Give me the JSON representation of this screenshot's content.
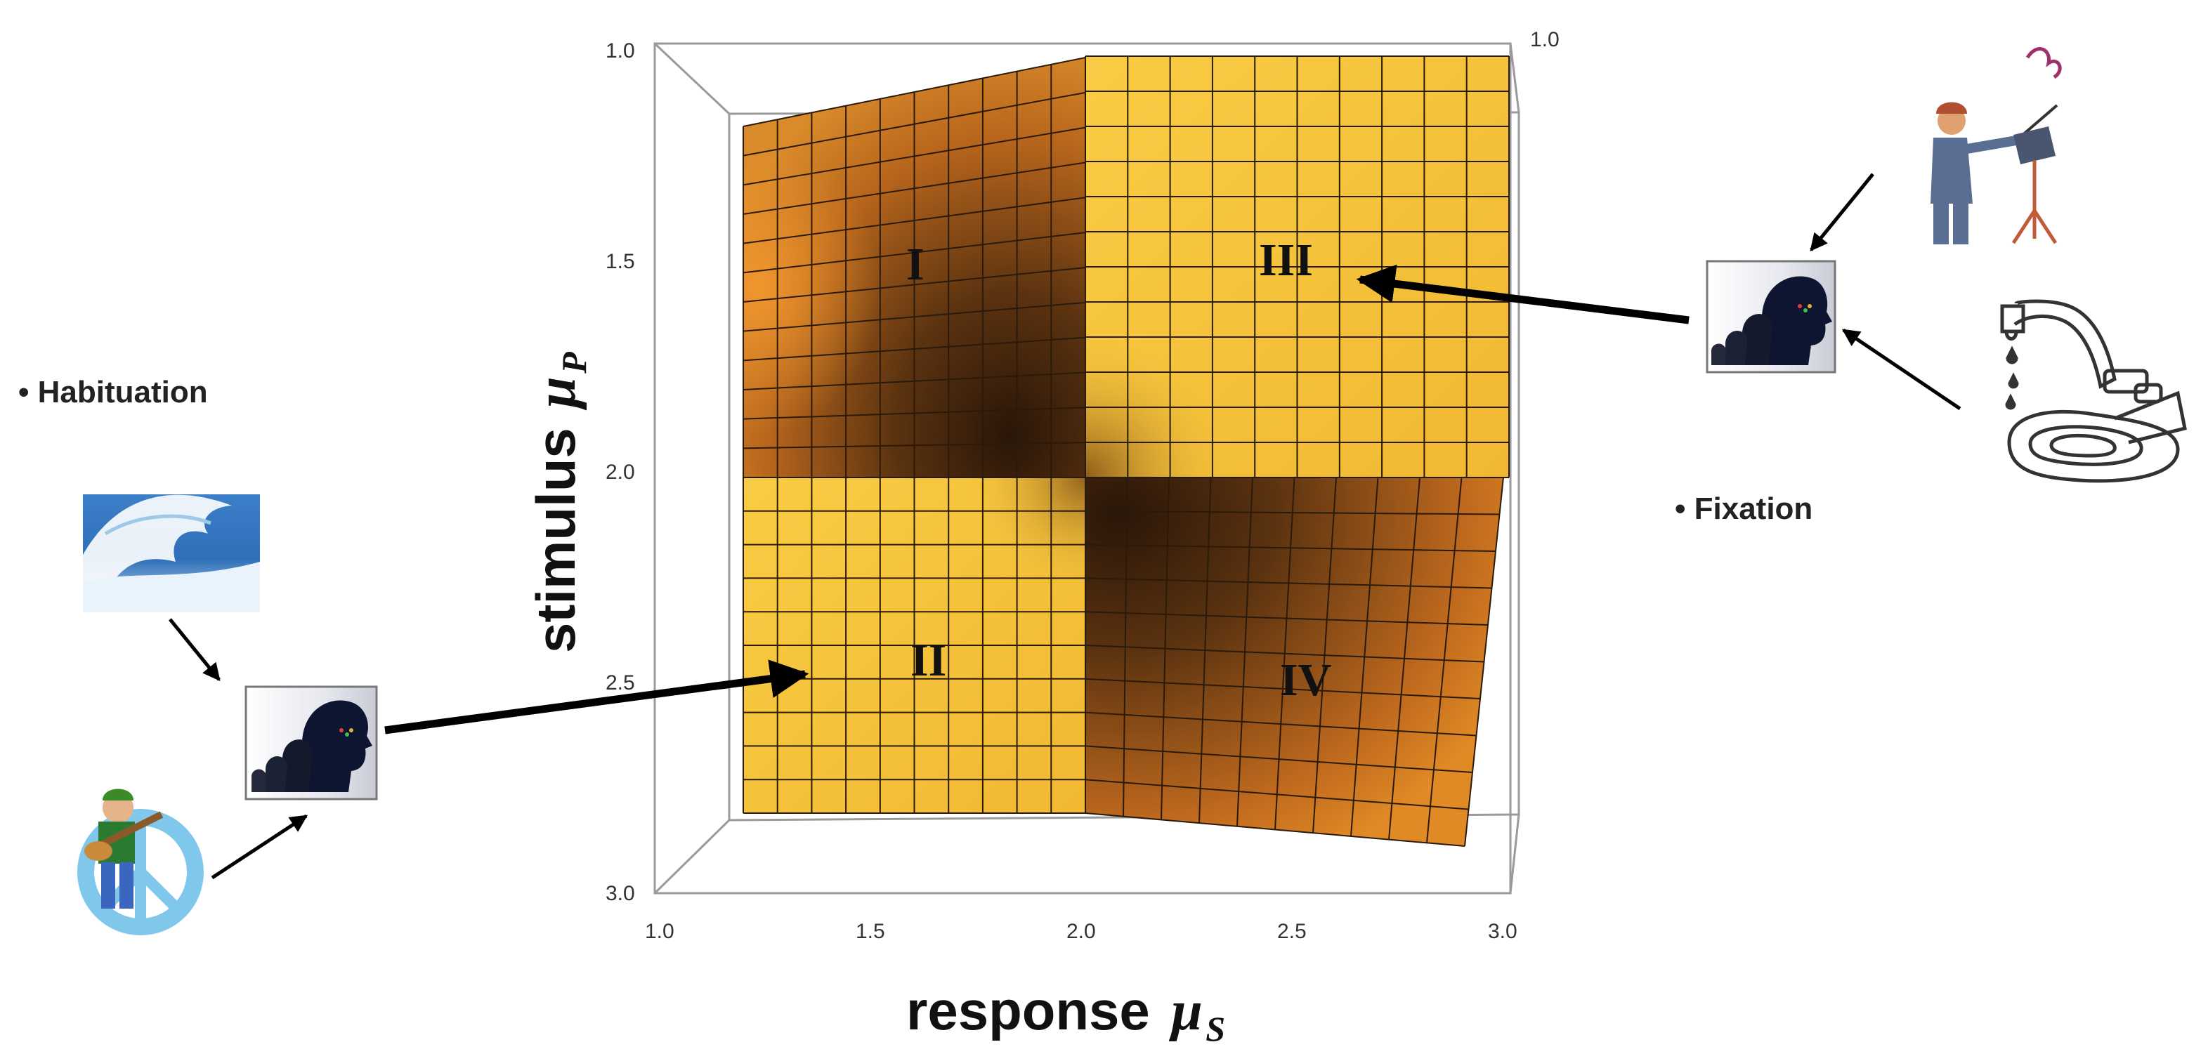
{
  "regions": {
    "r1": "I",
    "r2": "II",
    "r3": "III",
    "r4": "IV"
  },
  "labels": {
    "habituation": "• Habituation",
    "fixation": "• Fixation"
  },
  "axes": {
    "x": {
      "word": "response",
      "symbol": "μ",
      "sub": "S",
      "ticks": [
        "1.0",
        "1.5",
        "2.0",
        "2.5",
        "3.0"
      ]
    },
    "y": {
      "word": "stimulus",
      "symbol": "μ",
      "sub": "P",
      "ticks": [
        "1.0",
        "1.5",
        "2.0",
        "2.5",
        "3.0"
      ]
    },
    "corner_tick": "1.0"
  },
  "icons": {
    "left": [
      "ocean-wave-icon",
      "guitarist-peace-sign-icon",
      "head-silhouettes-icon"
    ],
    "right": [
      "conductor-music-stand-icon",
      "dripping-faucet-icon",
      "head-silhouettes-icon"
    ]
  },
  "colors": {
    "surface_light": "#f5c43a",
    "surface_dark": "#3a200c",
    "grid": "#2a1a0a",
    "arrow": "#000000"
  }
}
